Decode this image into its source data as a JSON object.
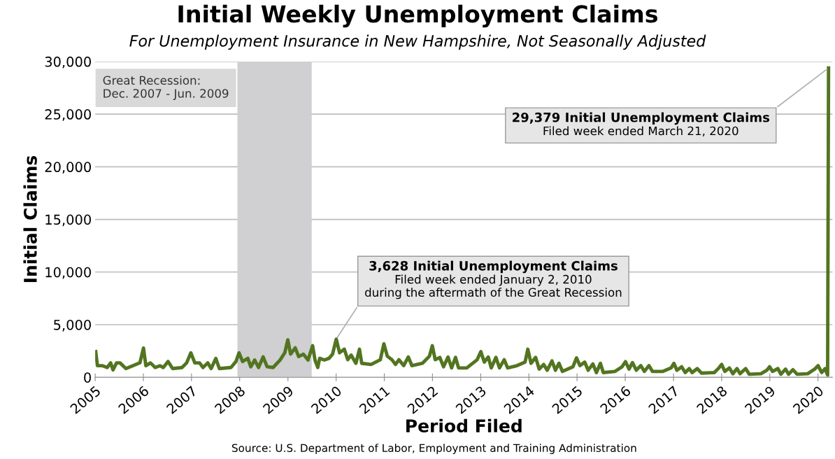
{
  "chart_data": {
    "type": "line",
    "title": "Initial Weekly Unemployment Claims",
    "subtitle": "For Unemployment Insurance in New Hampshire, Not Seasonally Adjusted",
    "xlabel": "Period Filed",
    "ylabel": "Initial Claims",
    "series": [
      {
        "color": "#527520",
        "x": [
          "2005-01-05",
          "2005-01-18",
          "2005-02-26",
          "2005-04-02",
          "2005-04-28",
          "2005-05-16",
          "2005-06-12",
          "2005-07-08",
          "2005-08-22",
          "2005-12-06",
          "2006-01-02",
          "2006-01-20",
          "2006-02-24",
          "2006-04-01",
          "2006-05-06",
          "2006-06-01",
          "2006-07-07",
          "2006-08-11",
          "2006-10-21",
          "2006-11-25",
          "2006-12-27",
          "2007-01-26",
          "2007-03-03",
          "2007-03-29",
          "2007-05-04",
          "2007-05-30",
          "2007-07-04",
          "2007-07-31",
          "2007-10-27",
          "2007-12-04",
          "2007-12-27",
          "2008-01-23",
          "2008-03-03",
          "2008-03-25",
          "2008-04-24",
          "2008-05-23",
          "2008-06-27",
          "2008-07-27",
          "2008-09-10",
          "2008-11-02",
          "2008-12-08",
          "2008-12-31",
          "2009-01-21",
          "2009-02-25",
          "2009-03-23",
          "2009-04-28",
          "2009-06-02",
          "2009-07-07",
          "2009-07-25",
          "2009-08-15",
          "2009-08-29",
          "2009-10-04",
          "2009-11-08",
          "2009-12-05",
          "2010-01-02",
          "2010-01-27",
          "2010-03-04",
          "2010-03-30",
          "2010-04-25",
          "2010-05-31",
          "2010-06-27",
          "2010-07-14",
          "2010-09-23",
          "2010-12-02",
          "2010-12-29",
          "2011-01-24",
          "2011-02-28",
          "2011-03-27",
          "2011-04-22",
          "2011-05-28",
          "2011-07-02",
          "2011-07-29",
          "2011-10-17",
          "2011-12-09",
          "2011-12-31",
          "2012-01-22",
          "2012-02-26",
          "2012-03-25",
          "2012-04-28",
          "2012-05-25",
          "2012-06-24",
          "2012-07-17",
          "2012-09-17",
          "2012-12-05",
          "2013-01-02",
          "2013-01-28",
          "2013-02-27",
          "2013-03-22",
          "2013-04-26",
          "2013-05-23",
          "2013-06-28",
          "2013-07-24",
          "2013-10-03",
          "2013-12-03",
          "2013-12-24",
          "2014-01-17",
          "2014-02-21",
          "2014-03-20",
          "2014-04-23",
          "2014-05-20",
          "2014-06-25",
          "2014-07-21",
          "2014-08-17",
          "2014-09-12",
          "2014-12-01",
          "2014-12-28",
          "2015-01-23",
          "2015-02-28",
          "2015-03-26",
          "2015-05-01",
          "2015-05-28",
          "2015-06-27",
          "2015-07-19",
          "2015-10-16",
          "2015-12-08",
          "2016-01-03",
          "2016-01-30",
          "2016-02-25",
          "2016-03-25",
          "2016-04-28",
          "2016-05-25",
          "2016-06-29",
          "2016-07-25",
          "2016-10-13",
          "2016-12-14",
          "2017-01-04",
          "2017-01-27",
          "2017-03-04",
          "2017-03-31",
          "2017-04-30",
          "2017-05-22",
          "2017-06-30",
          "2017-07-31",
          "2017-11-06",
          "2017-12-11",
          "2018-01-01",
          "2018-01-25",
          "2018-02-28",
          "2018-03-27",
          "2018-04-27",
          "2018-05-20",
          "2018-07-02",
          "2018-07-29",
          "2018-10-26",
          "2018-12-09",
          "2018-12-30",
          "2019-01-22",
          "2019-03-03",
          "2019-03-26",
          "2019-04-30",
          "2019-05-23",
          "2019-06-25",
          "2019-07-27",
          "2019-10-15",
          "2019-12-07",
          "2020-01-02",
          "2020-01-29",
          "2020-02-24",
          "2020-03-14",
          "2020-03-21"
        ],
        "values": [
          2440,
          1100,
          1100,
          930,
          1370,
          700,
          1370,
          1370,
          830,
          1370,
          2780,
          1100,
          1370,
          930,
          1100,
          930,
          1500,
          830,
          930,
          1370,
          2330,
          1370,
          1370,
          930,
          1370,
          830,
          1800,
          830,
          930,
          1500,
          2330,
          1500,
          1800,
          1000,
          1640,
          930,
          1940,
          1000,
          930,
          1640,
          2330,
          3560,
          2200,
          2800,
          1970,
          2200,
          1640,
          3000,
          1640,
          930,
          1800,
          1640,
          1800,
          2200,
          3628,
          2330,
          2670,
          1670,
          2110,
          1330,
          2670,
          1330,
          1220,
          1670,
          3180,
          2000,
          1670,
          1220,
          1670,
          1110,
          1930,
          1110,
          1330,
          2000,
          3000,
          1670,
          1890,
          1000,
          1930,
          890,
          1890,
          890,
          890,
          1670,
          2440,
          1440,
          1930,
          890,
          1890,
          890,
          1670,
          890,
          1110,
          1440,
          2670,
          1330,
          1890,
          780,
          1220,
          670,
          1560,
          670,
          1330,
          560,
          1000,
          1850,
          1110,
          1440,
          670,
          1270,
          450,
          1330,
          450,
          560,
          1000,
          1490,
          780,
          1400,
          670,
          1110,
          560,
          1110,
          560,
          560,
          890,
          1330,
          670,
          1000,
          450,
          830,
          450,
          830,
          400,
          450,
          890,
          1220,
          560,
          890,
          340,
          830,
          340,
          830,
          290,
          340,
          670,
          1000,
          560,
          830,
          290,
          780,
          290,
          720,
          290,
          340,
          780,
          1110,
          450,
          830,
          220,
          29379
        ]
      }
    ],
    "xlim": [
      "2005-01-01",
      "2020-04-20"
    ],
    "xticks": [
      {
        "value": "2005-01-01",
        "label": "2005"
      },
      {
        "value": "2006-01-01",
        "label": "2006"
      },
      {
        "value": "2007-01-01",
        "label": "2007"
      },
      {
        "value": "2008-01-01",
        "label": "2008"
      },
      {
        "value": "2009-01-01",
        "label": "2009"
      },
      {
        "value": "2010-01-01",
        "label": "2010"
      },
      {
        "value": "2011-01-01",
        "label": "2011"
      },
      {
        "value": "2012-01-01",
        "label": "2012"
      },
      {
        "value": "2013-01-01",
        "label": "2013"
      },
      {
        "value": "2014-01-01",
        "label": "2014"
      },
      {
        "value": "2015-01-01",
        "label": "2015"
      },
      {
        "value": "2016-01-01",
        "label": "2016"
      },
      {
        "value": "2017-01-01",
        "label": "2017"
      },
      {
        "value": "2018-01-01",
        "label": "2018"
      },
      {
        "value": "2019-01-01",
        "label": "2019"
      },
      {
        "value": "2020-01-01",
        "label": "2020"
      }
    ],
    "ylim": [
      0,
      30000
    ],
    "yticks": [
      0,
      {
        "value": 5000,
        "label": "5,000"
      },
      {
        "value": 10000,
        "label": "10,000"
      },
      {
        "value": 15000,
        "label": "15,000"
      },
      {
        "value": 20000,
        "label": "20,000"
      },
      {
        "value": 25000,
        "label": "25,000"
      },
      {
        "value": 30000,
        "label": "30,000"
      }
    ],
    "grid": "y",
    "line_style": "solid",
    "marker": "none",
    "bands": [
      {
        "axis": "x",
        "from": "2007-12",
        "to": "2009-06-30",
        "label": "Great Recession:\nDec. 2007 - Jun. 2009",
        "color": "#d0cfd1"
      }
    ],
    "annotations": [
      {
        "text": "3,628 Initial Unemployment Claims\nFiled week ended January 2, 2010\nduring the aftermath of the Great Recession",
        "x": "2010-01-02",
        "y": 3628
      },
      {
        "text": "29,379 Initial Unemployment Claims\nFiled week ended March 21, 2020",
        "x": "2020-03-21",
        "y": 29379
      },
      "Source: U.S. Department of Labor, Employment and Training Administration"
    ]
  }
}
